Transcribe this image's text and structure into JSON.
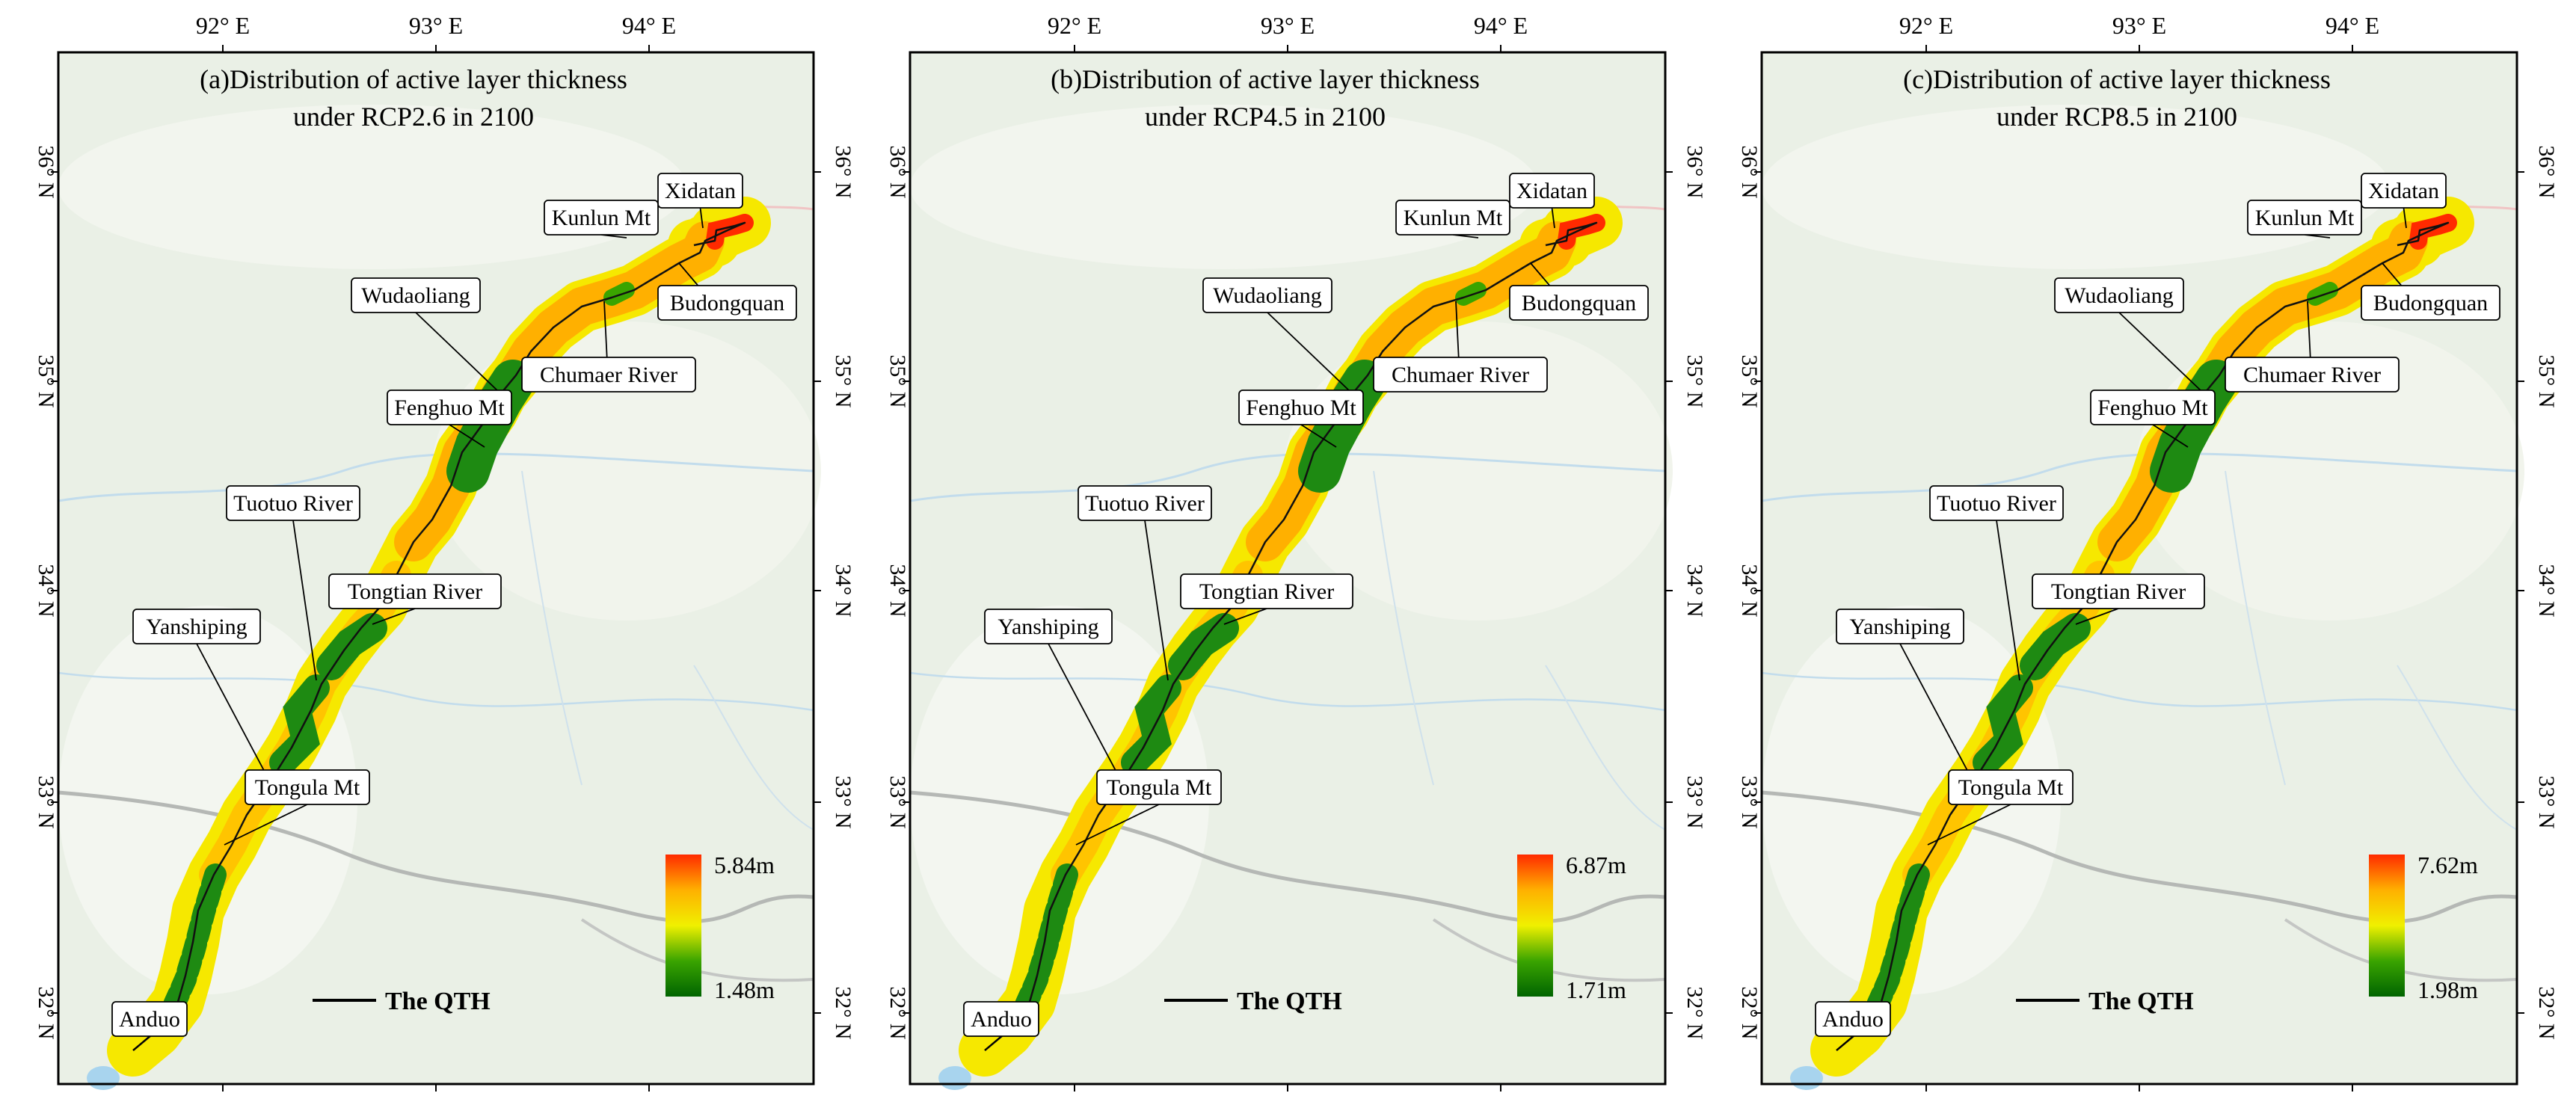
{
  "figure": {
    "lon_ticks": [
      "92° E",
      "93° E",
      "94° E"
    ],
    "lat_ticks": [
      "36° N",
      "35° N",
      "34° N",
      "33° N",
      "32° N"
    ],
    "legend_line_label": "The QTH",
    "place_labels": [
      "Xidatan",
      "Kunlun Mt",
      "Budongquan",
      "Wudaoliang",
      "Chumaer River",
      "Fenghuo Mt",
      "Tuotuo River",
      "Tongtian River",
      "Yanshiping",
      "Tongula Mt",
      "Anduo"
    ],
    "colors": {
      "colorbar_top": "#ff2a00",
      "colorbar_mid_orange": "#ffb000",
      "colorbar_mid_yellow": "#f0f000",
      "colorbar_bottom": "#006400",
      "route_line": "#111111",
      "base_map": "#eaf0e6"
    }
  },
  "panels": [
    {
      "id": "a",
      "title_line1": "(a)Distribution of active layer thickness",
      "title_line2": "under RCP2.6 in 2100",
      "colorbar_max": "5.84m",
      "colorbar_min": "1.48m"
    },
    {
      "id": "b",
      "title_line1": "(b)Distribution of active layer thickness",
      "title_line2": "under RCP4.5 in 2100",
      "colorbar_max": "6.87m",
      "colorbar_min": "1.71m"
    },
    {
      "id": "c",
      "title_line1": "(c)Distribution of active layer thickness",
      "title_line2": "under RCP8.5 in 2100",
      "colorbar_max": "7.62m",
      "colorbar_min": "1.98m"
    }
  ]
}
